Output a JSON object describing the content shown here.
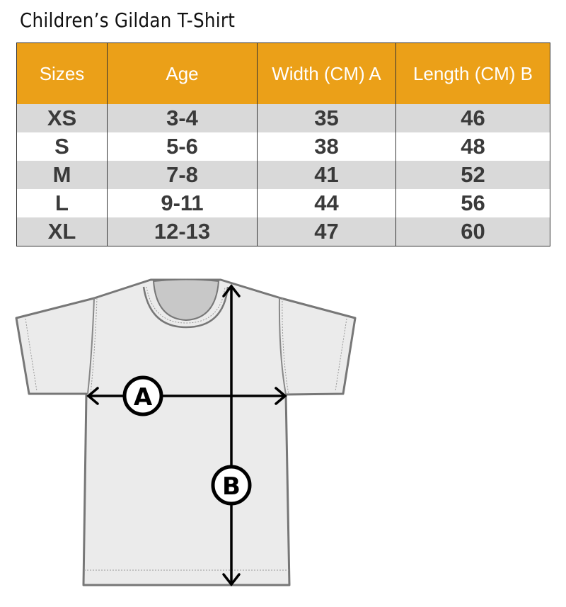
{
  "title": "Children’s Gildan T-Shirt",
  "table": {
    "headers": [
      "Sizes",
      "Age",
      "Width (CM) A",
      "Length  (CM) B"
    ],
    "rows": [
      [
        "XS",
        "3-4",
        "35",
        "46"
      ],
      [
        "S",
        "5-6",
        "38",
        "48"
      ],
      [
        "M",
        "7-8",
        "41",
        "52"
      ],
      [
        "L",
        "9-11",
        "44",
        "56"
      ],
      [
        "XL",
        "12-13",
        "47",
        "60"
      ]
    ]
  },
  "diagram": {
    "label_a": "A",
    "label_b": "B"
  },
  "colors": {
    "header": "#EBA018",
    "stripe": "#D9D9D9",
    "shirt": "#EBEBEB"
  }
}
